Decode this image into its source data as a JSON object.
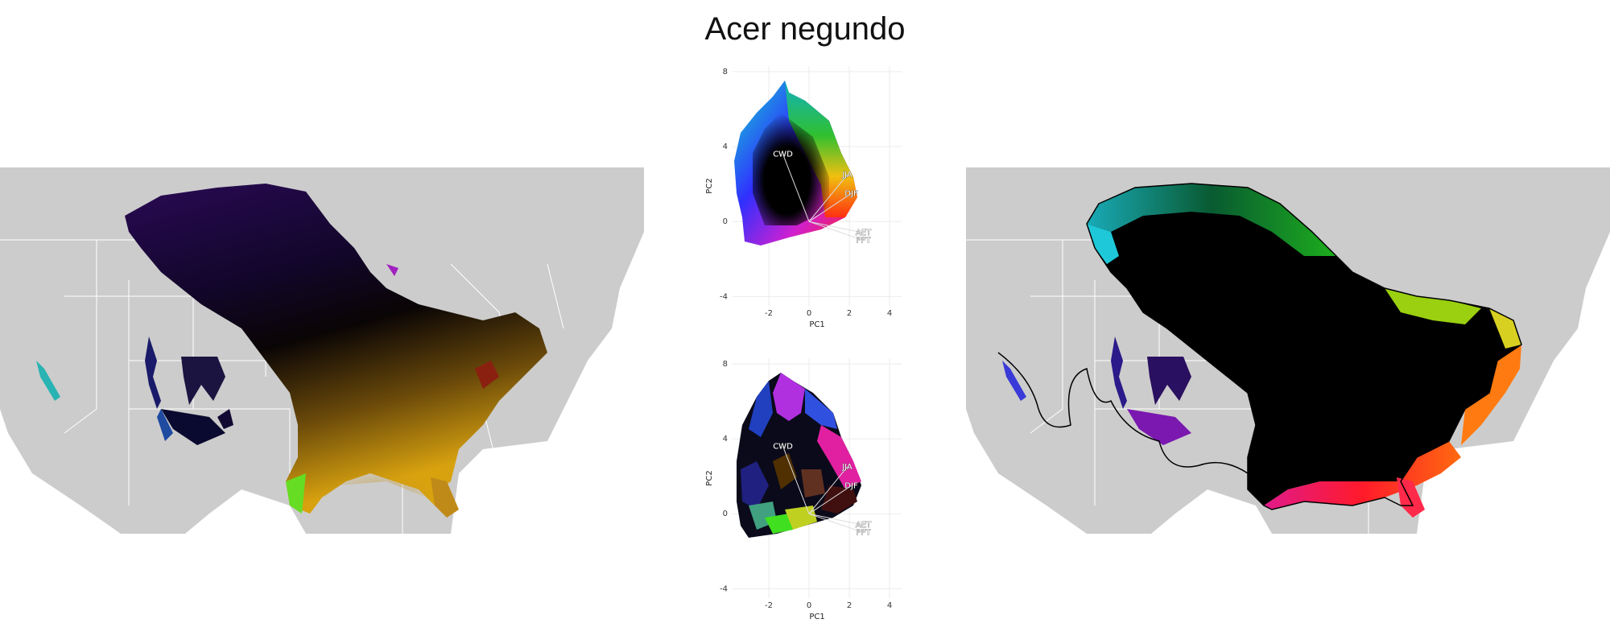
{
  "title": "Acer negundo",
  "pca": {
    "x_label": "PC1",
    "y_label": "PC2",
    "x_ticks": [
      "-2",
      "0",
      "2",
      "4"
    ],
    "y_ticks": [
      "8",
      "4",
      "0",
      "-4"
    ],
    "xlim": [
      -3.8,
      4.6
    ],
    "ylim": [
      -4.5,
      8.3
    ],
    "loadings": [
      {
        "label": "CWD",
        "x": -1.3,
        "y": 3.6
      },
      {
        "label": "JJA",
        "x": 1.9,
        "y": 2.5
      },
      {
        "label": "DJF",
        "x": 2.1,
        "y": 1.5
      },
      {
        "label": "AET",
        "x": 2.7,
        "y": -0.6
      },
      {
        "label": "PPT",
        "x": 2.7,
        "y": -1.0
      }
    ]
  },
  "colors": {
    "land": "#cccccc",
    "border": "#ffffff",
    "grid": "#ebebeb"
  }
}
